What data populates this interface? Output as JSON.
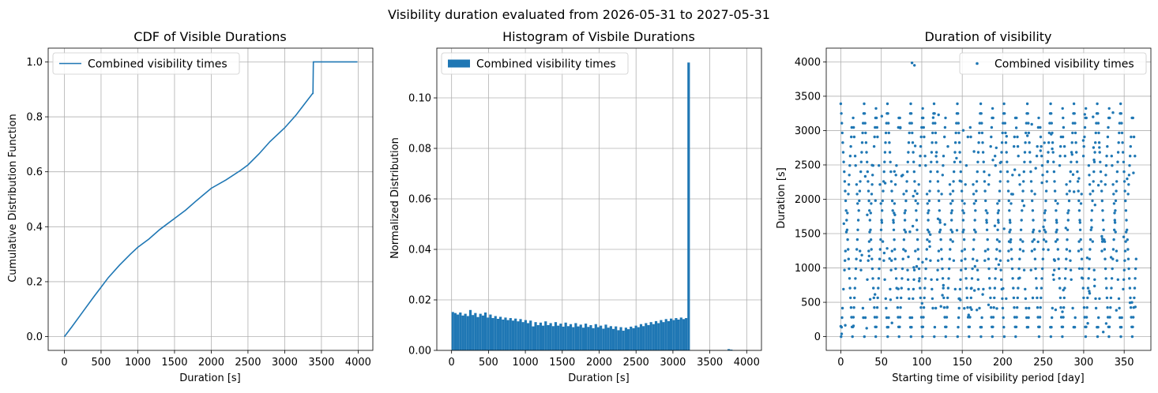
{
  "figure_title": "Visibility duration evaluated from 2026-05-31 to 2027-05-31",
  "colors": {
    "series": "#1f77b4",
    "grid": "#b0b0b0"
  },
  "chart_data": [
    {
      "type": "line",
      "title": "CDF of Visible Durations",
      "xlabel": "Duration [s]",
      "ylabel": "Cumulative Distribution Function",
      "xlim": [
        -220,
        4200
      ],
      "ylim": [
        -0.05,
        1.05
      ],
      "xticks": [
        0,
        500,
        1000,
        1500,
        2000,
        2500,
        3000,
        3500,
        4000
      ],
      "yticks": [
        0.0,
        0.2,
        0.4,
        0.6,
        0.8,
        1.0
      ],
      "ytick_labels": [
        "0.0",
        "0.2",
        "0.4",
        "0.6",
        "0.8",
        "1.0"
      ],
      "grid": true,
      "legend_position": "upper left",
      "series": [
        {
          "name": "Combined visibility times",
          "x": [
            0,
            100,
            250,
            400,
            500,
            600,
            750,
            900,
            1000,
            1150,
            1300,
            1400,
            1500,
            1650,
            1800,
            2000,
            2200,
            2400,
            2500,
            2650,
            2800,
            3000,
            3150,
            3250,
            3380,
            3385,
            3390,
            3500,
            3700,
            3990
          ],
          "y": [
            0.0,
            0.035,
            0.09,
            0.145,
            0.18,
            0.215,
            0.26,
            0.3,
            0.325,
            0.355,
            0.39,
            0.41,
            0.43,
            0.46,
            0.495,
            0.54,
            0.57,
            0.605,
            0.625,
            0.665,
            0.71,
            0.76,
            0.805,
            0.84,
            0.885,
            0.885,
            1.0,
            1.0,
            1.0,
            1.0
          ]
        }
      ]
    },
    {
      "type": "bar",
      "title": "Histogram of Visbile Durations",
      "xlabel": "Duration [s]",
      "ylabel": "Normalized Distribution",
      "xlim": [
        -200,
        4200
      ],
      "ylim": [
        0,
        0.1197
      ],
      "xticks": [
        0,
        500,
        1000,
        1500,
        2000,
        2500,
        3000,
        3500,
        4000
      ],
      "yticks": [
        0.0,
        0.02,
        0.04,
        0.06,
        0.08,
        0.1
      ],
      "ytick_labels": [
        "0.00",
        "0.02",
        "0.04",
        "0.06",
        "0.08",
        "0.10"
      ],
      "grid": true,
      "legend_position": "upper left",
      "bin_edges_start": 0,
      "bin_width": 34,
      "series": [
        {
          "name": "Combined visibility times",
          "values": [
            0.0152,
            0.0148,
            0.0142,
            0.015,
            0.0138,
            0.0145,
            0.0136,
            0.016,
            0.014,
            0.0148,
            0.0132,
            0.0145,
            0.0138,
            0.015,
            0.013,
            0.0142,
            0.0128,
            0.0136,
            0.0125,
            0.0133,
            0.0122,
            0.013,
            0.012,
            0.0128,
            0.0118,
            0.0126,
            0.0115,
            0.0124,
            0.0112,
            0.012,
            0.0108,
            0.0118,
            0.0095,
            0.0112,
            0.01,
            0.011,
            0.0098,
            0.0115,
            0.01,
            0.0108,
            0.0096,
            0.0112,
            0.0098,
            0.0106,
            0.0094,
            0.011,
            0.0096,
            0.0104,
            0.0092,
            0.0108,
            0.0095,
            0.0102,
            0.009,
            0.0106,
            0.0093,
            0.01,
            0.0088,
            0.0104,
            0.0092,
            0.0098,
            0.0086,
            0.0102,
            0.009,
            0.0096,
            0.0085,
            0.0095,
            0.008,
            0.0092,
            0.0078,
            0.009,
            0.0084,
            0.0094,
            0.0088,
            0.0098,
            0.0092,
            0.0104,
            0.0096,
            0.0108,
            0.01,
            0.0112,
            0.0104,
            0.0116,
            0.0108,
            0.012,
            0.0112,
            0.0124,
            0.0116,
            0.0126,
            0.012,
            0.0128,
            0.0122,
            0.013,
            0.0124,
            0.0128,
            0.114,
            0,
            0,
            0,
            0,
            0,
            0,
            0,
            0,
            0,
            0,
            0,
            0,
            0,
            0,
            0,
            0.0005,
            0.0003
          ]
        }
      ]
    },
    {
      "type": "scatter",
      "title": "Duration of visibility",
      "xlabel": "Starting time of visibility period [day]",
      "ylabel": "Duration [s]",
      "xlim": [
        -18,
        383
      ],
      "ylim": [
        -200,
        4200
      ],
      "xticks": [
        0,
        50,
        100,
        150,
        200,
        250,
        300,
        350
      ],
      "yticks": [
        0,
        500,
        1000,
        1500,
        2000,
        2500,
        3000,
        3500,
        4000
      ],
      "grid": true,
      "legend_position": "upper right",
      "series": [
        {
          "name": "Combined visibility times",
          "x": [],
          "y": []
        }
      ]
    }
  ]
}
